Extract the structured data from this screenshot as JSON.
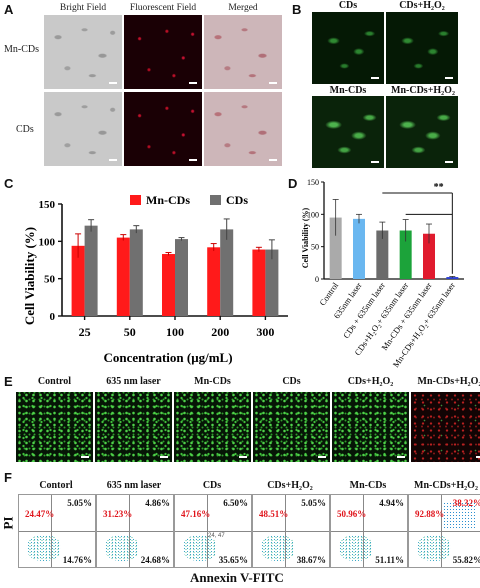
{
  "panel_labels": {
    "A": "A",
    "B": "B",
    "C": "C",
    "D": "D",
    "E": "E",
    "F": "F"
  },
  "panelA": {
    "columns": [
      "Bright Field",
      "Fluorescent Field",
      "Merged"
    ],
    "rows": [
      "Mn-CDs",
      "CDs"
    ]
  },
  "panelB": {
    "headers": [
      "CDs",
      "CDs+H₂O₂",
      "Mn-CDs",
      "Mn-CDs+H₂O₂"
    ]
  },
  "panelC": {
    "chart_data": {
      "type": "bar",
      "categories": [
        "25",
        "50",
        "100",
        "200",
        "300"
      ],
      "series": [
        {
          "name": "Mn-CDs",
          "values": [
            94,
            105,
            83,
            92,
            89
          ],
          "errors": [
            16,
            4,
            2,
            5,
            3
          ],
          "color": "#ff1a1a"
        },
        {
          "name": "CDs",
          "values": [
            121,
            116,
            103,
            116,
            89
          ],
          "errors": [
            8,
            5,
            2,
            14,
            13
          ],
          "color": "#707070"
        }
      ],
      "xlabel": "Concentration (μg/mL)",
      "ylabel": "Cell Viability (%)",
      "ylim": [
        0,
        150
      ],
      "yticks": [
        "0",
        "50",
        "100",
        "150"
      ],
      "legend": "top"
    }
  },
  "panelD": {
    "chart_data": {
      "type": "bar",
      "categories": [
        "Control",
        "635nm laser",
        "CDs + 635nm laser",
        "CDs+H₂O₂+ 635nm laser",
        "Mn-CDs + 635nm laser",
        "Mn-CDs+H₂O₂+ 635nm laser"
      ],
      "values": [
        95,
        93,
        75,
        75,
        70,
        3
      ],
      "errors": [
        28,
        7,
        13,
        17,
        15,
        1
      ],
      "colors": [
        "#aaaaaa",
        "#6ab7f0",
        "#6b6b6b",
        "#1ca33a",
        "#e01b2e",
        "#2c3fd1"
      ],
      "ylabel": "Cell Viability (%)",
      "ylim": [
        0,
        150
      ],
      "yticks": [
        "0",
        "50",
        "100",
        "150"
      ],
      "annotation": "**"
    }
  },
  "panelE": {
    "headers": [
      "Control",
      "635 nm laser",
      "Mn-CDs",
      "CDs",
      "CDs+H₂O₂",
      "Mn-CDs+H₂O₂"
    ]
  },
  "panelF": {
    "headers": [
      "Contorl",
      "635 nm laser",
      "CDs",
      "CDs+H₂O₂",
      "Mn-CDs",
      "Mn-CDs+H₂O₂"
    ],
    "q_upper_left": [
      "24.47%",
      "31.23%",
      "47.16%",
      "48.51%",
      "50.96%",
      "92.88%"
    ],
    "q_upper_right": [
      "5.05%",
      "4.86%",
      "6.50%",
      "5.05%",
      "4.94%",
      "38.32%"
    ],
    "q_lower_right": [
      "14.76%",
      "24.68%",
      "35.65%",
      "38.67%",
      "51.11%",
      "55.82%"
    ],
    "center_note": "24, 47",
    "ylabel": "PI",
    "xlabel": "Annexin V-FITC"
  }
}
